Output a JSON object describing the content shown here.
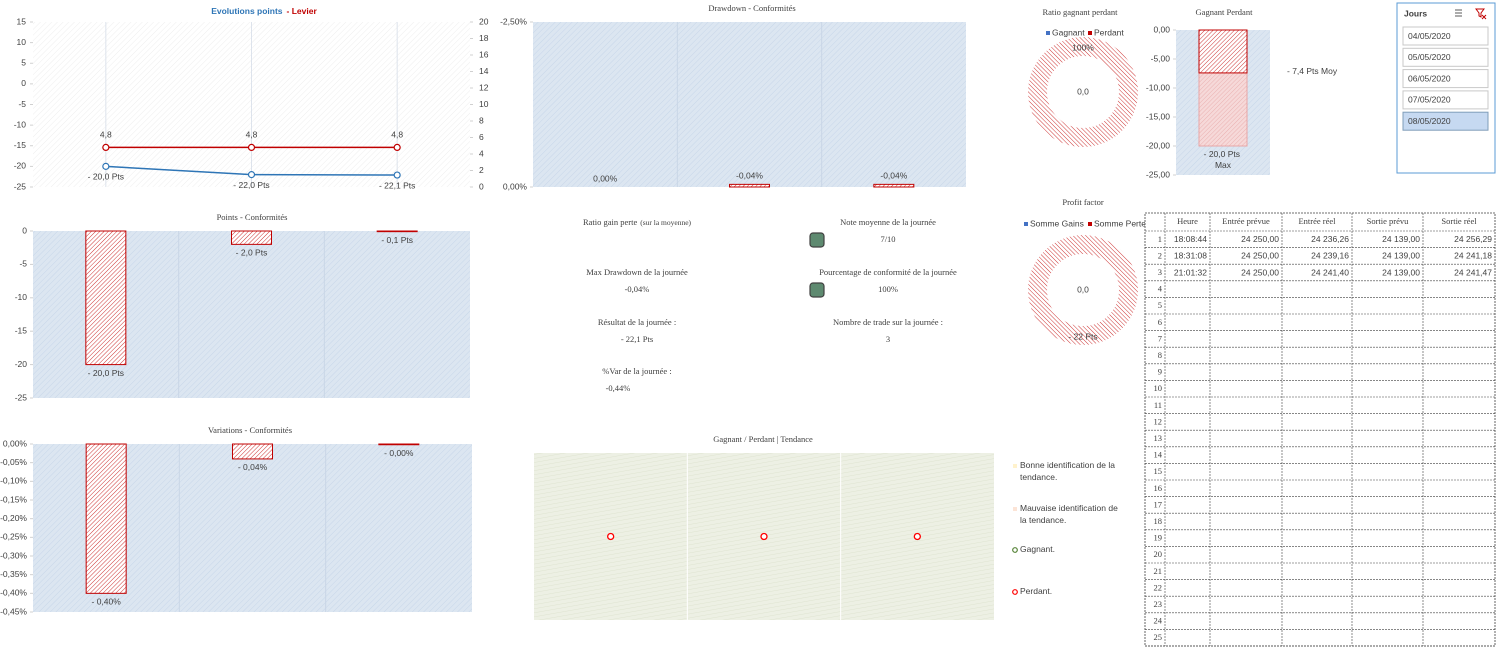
{
  "chart_data": [
    {
      "type": "line",
      "title_parts": [
        {
          "text": "Evolutions points",
          "color": "#2e75b6"
        },
        {
          "text": "- Levier",
          "color": "#c00000"
        }
      ],
      "categories": [
        null,
        null,
        null
      ],
      "ylim": [
        -25,
        15
      ],
      "yticks": [
        15,
        10,
        5,
        0,
        -5,
        -10,
        -15,
        -20,
        -25
      ],
      "y2lim": [
        0,
        20
      ],
      "y2ticks": [
        20,
        18,
        16,
        14,
        12,
        10,
        8,
        6,
        4,
        2,
        0
      ],
      "series": [
        {
          "color": "#2e75b6",
          "values": [
            -20,
            -22,
            -22.1
          ],
          "value_labels": [
            "- 20,0 Pts",
            "- 22,0 Pts",
            "- 22,1 Pts"
          ]
        },
        {
          "color": "#c00000",
          "axis": "y2",
          "values": [
            4.8,
            4.8,
            4.8
          ],
          "value_labels": [
            "4,8",
            "4,8",
            "4,8"
          ]
        }
      ]
    },
    {
      "type": "bar",
      "title": "Drawdown - Conformités",
      "categories": [
        null,
        null,
        null
      ],
      "ylim": [
        0,
        -2.5
      ],
      "yticks": [
        {
          "value": -2.5,
          "label": "-2,50%"
        },
        {
          "value": 0,
          "label": "0,00%"
        }
      ],
      "values": [
        0,
        -0.04,
        -0.04
      ],
      "value_labels": [
        "0,00%",
        "-0,04%",
        "-0,04%"
      ],
      "color": "#c00000"
    },
    {
      "type": "donut",
      "title": "Ratio gagnant perdant",
      "categories": [
        "Gagnant",
        "Perdant"
      ],
      "values": [
        0,
        100
      ],
      "value_labels": [
        null,
        "100%"
      ],
      "colors": [
        "#4472c4",
        "#c00000"
      ],
      "center_label": "0,0"
    },
    {
      "type": "bar",
      "title": "Gagnant Perdant",
      "categories": [
        null
      ],
      "ylim": [
        -25,
        0
      ],
      "yticks": [
        {
          "value": 0,
          "label": "0,00"
        },
        {
          "value": -5,
          "label": "-5,00"
        },
        {
          "value": -10,
          "label": "-10,00"
        },
        {
          "value": -15,
          "label": "-15,00"
        },
        {
          "value": -20,
          "label": "-20,00"
        },
        {
          "value": -25,
          "label": "-25,00"
        }
      ],
      "series": [
        {
          "color": "#e8a6a6",
          "values": [
            -20
          ],
          "value_labels": [
            "- 20,0 Pts Max"
          ]
        },
        {
          "color": "#c00000",
          "values": [
            -7.4
          ],
          "value_labels": [
            "- 7,4 Pts Moy"
          ]
        }
      ]
    },
    {
      "type": "bar",
      "title": "Points - Conformités",
      "categories": [
        null,
        null,
        null
      ],
      "ylim": [
        -25,
        0
      ],
      "yticks": [
        0,
        -5,
        -10,
        -15,
        -20,
        -25
      ],
      "values": [
        -20,
        -2,
        -0.1
      ],
      "value_labels": [
        "- 20,0 Pts",
        "- 2,0 Pts",
        "- 0,1 Pts"
      ],
      "color": "#c00000"
    },
    {
      "type": "donut",
      "title": "Profit factor",
      "categories": [
        "Somme Gains",
        "Somme Pertes"
      ],
      "values": [
        0,
        22
      ],
      "value_labels": [
        null,
        "- 22 Pts"
      ],
      "colors": [
        "#4472c4",
        "#c00000"
      ],
      "center_label": "0,0"
    },
    {
      "type": "bar",
      "title": "Variations - Conformités",
      "categories": [
        null,
        null,
        null
      ],
      "ylim": [
        -0.45,
        0
      ],
      "yticks": [
        {
          "value": 0,
          "label": "0,00%"
        },
        {
          "value": -0.05,
          "label": "-0,05%"
        },
        {
          "value": -0.1,
          "label": "-0,10%"
        },
        {
          "value": -0.15,
          "label": "-0,15%"
        },
        {
          "value": -0.2,
          "label": "-0,20%"
        },
        {
          "value": -0.25,
          "label": "-0,25%"
        },
        {
          "value": -0.3,
          "label": "-0,30%"
        },
        {
          "value": -0.35,
          "label": "-0,35%"
        },
        {
          "value": -0.4,
          "label": "-0,40%"
        },
        {
          "value": -0.45,
          "label": "-0,45%"
        }
      ],
      "values": [
        -0.4,
        -0.04,
        -0.002
      ],
      "value_labels": [
        "- 0,40%",
        "- 0,04%",
        "- 0,00%"
      ],
      "color": "#c00000"
    },
    {
      "type": "scatter",
      "title": "Gagnant / Perdant | Tendance",
      "x": [
        1,
        2,
        3
      ],
      "xlim": [
        0.5,
        3.5
      ],
      "values": [
        0.5,
        0.5,
        0.5
      ],
      "ylim": [
        0,
        1
      ],
      "color": "#ff0000",
      "legend": [
        {
          "label": "Bonne identification de la tendance.",
          "marker": "square",
          "color": "#fff2cc"
        },
        {
          "label": "Mauvaise identification de la tendance.",
          "marker": "square",
          "color": "#fce4d6"
        },
        {
          "label": "Gagnant.",
          "marker": "circle",
          "color": "#548235"
        },
        {
          "label": "Perdant.",
          "marker": "circle",
          "color": "#ff0000"
        }
      ]
    }
  ],
  "kpis": [
    {
      "label": "Ratio gain perte",
      "note": "(sur la moyenne)"
    },
    {
      "label": "Note moyenne de la journée",
      "value": "7/10",
      "indicator_color": "#5e8a70"
    },
    {
      "label": "Max Drawdown de la journée",
      "value": "-0,04%"
    },
    {
      "label": "Pourcentage de conformité de la journée",
      "value": "100%",
      "indicator_color": "#5e8a70"
    },
    {
      "label": "Résultat de la journée :",
      "value": "- 22,1 Pts"
    },
    {
      "label": "Nombre de trade sur la journée :",
      "value": "3"
    },
    {
      "label": "%Var de la journée :",
      "value": "-0,44%"
    }
  ],
  "slicer": {
    "title": "Jours",
    "items": [
      "04/05/2020",
      "05/05/2020",
      "06/05/2020",
      "07/05/2020",
      "08/05/2020"
    ],
    "selected": 4
  },
  "table": {
    "headers": [
      "Heure",
      "Entrée prévue",
      "Entrée réel",
      "Sortie prévu",
      "Sortie réel"
    ],
    "rows": [
      [
        1,
        "18:08:44",
        "24 250,00",
        "24 236,26",
        "24 139,00",
        "24 256,29"
      ],
      [
        2,
        "18:31:08",
        "24 250,00",
        "24 239,16",
        "24 139,00",
        "24 241,18"
      ],
      [
        3,
        "21:01:32",
        "24 250,00",
        "24 241,40",
        "24 139,00",
        "24 241,47"
      ],
      [
        4
      ],
      [
        5
      ],
      [
        6
      ],
      [
        7
      ],
      [
        8
      ],
      [
        9
      ],
      [
        10
      ],
      [
        11
      ],
      [
        12
      ],
      [
        13
      ],
      [
        14
      ],
      [
        15
      ],
      [
        16
      ],
      [
        17
      ],
      [
        18
      ],
      [
        19
      ],
      [
        20
      ],
      [
        21
      ],
      [
        22
      ],
      [
        23
      ],
      [
        24
      ],
      [
        25
      ]
    ]
  }
}
